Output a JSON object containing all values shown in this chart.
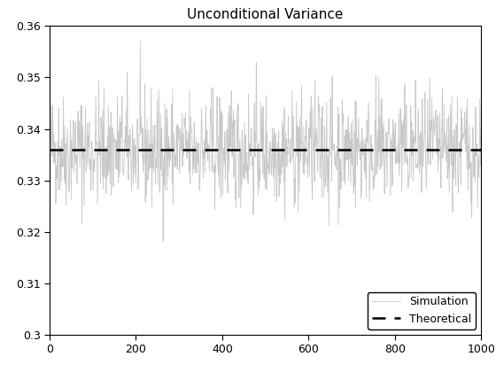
{
  "title": "Unconditional Variance",
  "xlim": [
    0,
    1000
  ],
  "ylim": [
    0.3,
    0.36
  ],
  "yticks": [
    0.3,
    0.31,
    0.32,
    0.33,
    0.34,
    0.35,
    0.36
  ],
  "xticks": [
    0,
    200,
    400,
    600,
    800,
    1000
  ],
  "theoretical_value": 0.336,
  "sim_color": "#c8c8c8",
  "theoretical_color": "#000000",
  "sim_linewidth": 0.6,
  "theoretical_linewidth": 1.8,
  "theoretical_linestyle": "--",
  "legend_labels": [
    "Simulation",
    "Theoretical"
  ],
  "n_points": 1000,
  "sim_mean": 0.336,
  "sim_std": 0.0055,
  "random_seed": 42,
  "title_fontsize": 11,
  "tick_fontsize": 9,
  "legend_fontsize": 9
}
